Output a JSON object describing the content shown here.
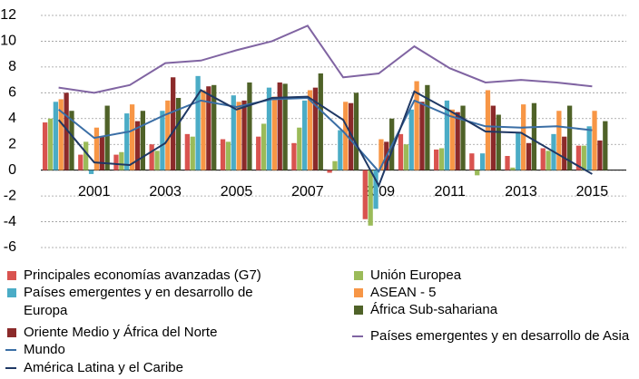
{
  "chart_data": {
    "type": "bar",
    "categories": [
      null,
      "2001",
      null,
      "2003",
      null,
      "2005",
      null,
      "2007",
      null,
      "2009",
      null,
      "2011",
      null,
      "2013",
      null,
      "2015"
    ],
    "ylim": [
      -6,
      12
    ],
    "yticks": [
      -6,
      -4,
      -2,
      0,
      2,
      4,
      6,
      8,
      10,
      12
    ],
    "grid": true,
    "series": [
      {
        "name": "Principales economías avanzadas (G7)",
        "color": "#d9534f",
        "values": [
          3.7,
          1.2,
          1.2,
          2.0,
          2.8,
          2.4,
          2.6,
          2.1,
          -0.2,
          -3.8,
          2.8,
          1.6,
          1.3,
          1.1,
          1.7,
          1.9
        ]
      },
      {
        "name": "Unión Europea",
        "color": "#9bbb59",
        "values": [
          4.0,
          2.2,
          1.4,
          1.5,
          2.6,
          2.2,
          3.6,
          3.3,
          0.7,
          -4.3,
          2.0,
          1.7,
          -0.4,
          0.2,
          1.5,
          1.9
        ]
      },
      {
        "name": "Países emergentes y en desarrollo de Europa",
        "color": "#4bacc6",
        "values": [
          5.3,
          -0.3,
          4.4,
          4.6,
          7.3,
          5.8,
          6.4,
          5.4,
          3.1,
          -3.0,
          4.7,
          5.4,
          1.3,
          2.9,
          2.8,
          3.4
        ]
      },
      {
        "name": "ASEAN - 5",
        "color": "#f79646",
        "values": [
          5.5,
          3.3,
          5.1,
          5.4,
          6.2,
          5.3,
          5.7,
          6.2,
          5.3,
          2.4,
          6.9,
          4.7,
          6.2,
          5.1,
          4.6,
          4.6
        ]
      },
      {
        "name": "Oriente Medio y África del Norte",
        "color": "#8b2a2a",
        "values": [
          6.0,
          2.6,
          3.8,
          7.2,
          6.5,
          5.4,
          6.8,
          6.4,
          5.2,
          2.2,
          5.3,
          4.5,
          5.0,
          2.1,
          2.6,
          2.3
        ]
      },
      {
        "name": "África Sub-sahariana",
        "color": "#4f6228",
        "values": [
          4.6,
          5.0,
          4.6,
          5.6,
          6.6,
          6.8,
          6.7,
          7.5,
          6.0,
          4.0,
          6.6,
          5.0,
          4.3,
          5.2,
          5.0,
          3.8
        ]
      },
      {
        "name": "Mundo",
        "type": "line",
        "color": "#3a6ea5",
        "values": [
          4.7,
          2.5,
          3.0,
          4.3,
          5.4,
          4.9,
          5.5,
          5.6,
          3.0,
          -0.1,
          5.4,
          4.2,
          3.4,
          3.3,
          3.4,
          3.1
        ]
      },
      {
        "name": "América Latina y el Caribe",
        "type": "line",
        "color": "#1f3864",
        "values": [
          3.9,
          0.6,
          0.4,
          2.1,
          6.2,
          4.7,
          5.6,
          5.7,
          3.9,
          -1.2,
          6.1,
          4.6,
          3.0,
          2.9,
          1.3,
          -0.3
        ]
      },
      {
        "name": "Países emergentes y en desarrollo de Asia",
        "type": "line",
        "color": "#8064a2",
        "values": [
          6.4,
          6.0,
          6.6,
          8.3,
          8.5,
          9.3,
          10.0,
          11.2,
          7.2,
          7.5,
          9.6,
          7.9,
          6.8,
          7.0,
          6.8,
          6.5
        ]
      }
    ]
  }
}
